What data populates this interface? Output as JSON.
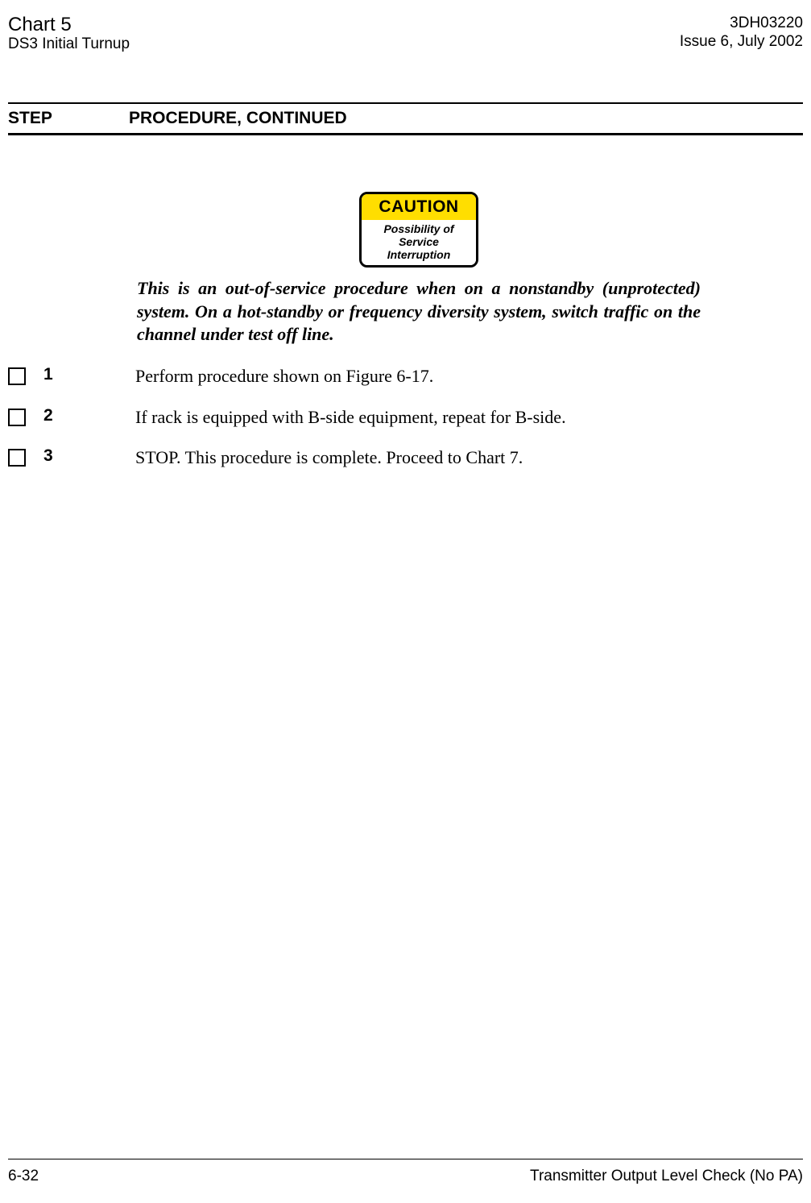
{
  "header": {
    "chart_title": "Chart 5",
    "subtitle": "DS3 Initial Turnup",
    "doc_id": "3DH03220",
    "issue": "Issue 6, July 2002"
  },
  "section": {
    "step_label": "STEP",
    "procedure_label": "PROCEDURE, CONTINUED"
  },
  "caution": {
    "title": "CAUTION",
    "line1": "Possibility of",
    "line2": "Service",
    "line3": "Interruption",
    "bg_color": "#ffde00"
  },
  "warning_text": "This is an out-of-service procedure when on a nonstandby (unprotected) system. On a hot-standby or frequency diversity system, switch traffic on the channel under test off line.",
  "steps": [
    {
      "num": "1",
      "text": "Perform procedure shown on Figure 6-17."
    },
    {
      "num": "2",
      "text": "If rack is equipped with B-side equipment, repeat for B-side."
    },
    {
      "num": "3",
      "text": "STOP. This procedure is complete. Proceed to Chart 7."
    }
  ],
  "footer": {
    "page": "6-32",
    "title": "Transmitter Output Level Check (No PA)"
  }
}
